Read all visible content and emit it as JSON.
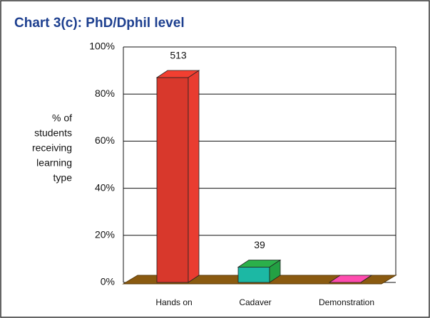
{
  "chart_data": {
    "type": "bar3d",
    "title": "Chart 3(c): PhD/Dphil level",
    "y_label": [
      "% of",
      "students",
      "receiving",
      "learning",
      "type"
    ],
    "categories": [
      "Hands on",
      "Cadaver",
      "Demonstration"
    ],
    "values": [
      87,
      6.5,
      0
    ],
    "counts": [
      513,
      39,
      null
    ],
    "colors": [
      "#d8382c",
      "#1cb8a4",
      "#e8449c"
    ],
    "ylim": [
      0,
      100
    ],
    "yticks": [
      {
        "value": 0,
        "label": "0%"
      },
      {
        "value": 20,
        "label": "20%"
      },
      {
        "value": 40,
        "label": "40%"
      },
      {
        "value": 60,
        "label": "60%"
      },
      {
        "value": 80,
        "label": "80%"
      },
      {
        "value": 100,
        "label": "100%"
      }
    ],
    "grid": true
  }
}
